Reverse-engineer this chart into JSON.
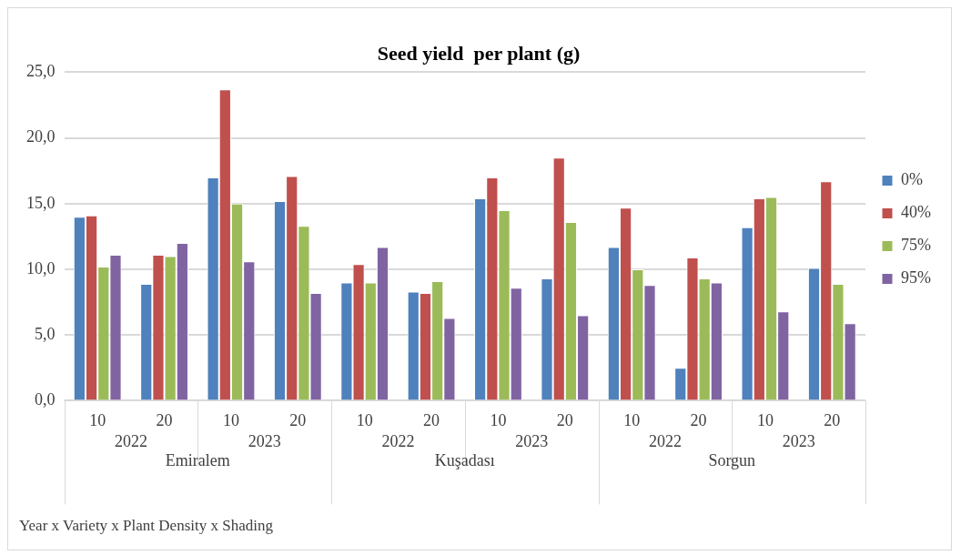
{
  "chart_data": {
    "type": "bar",
    "title": "Seed yield  per plant (g)",
    "categories": [
      "10",
      "20",
      "10",
      "20",
      "10",
      "20",
      "10",
      "20",
      "10",
      "20",
      "10",
      "20"
    ],
    "series": [
      {
        "name": "0%",
        "color": "#4f81bd",
        "values": [
          14.0,
          8.9,
          17.0,
          15.2,
          9.0,
          8.3,
          15.4,
          9.3,
          11.7,
          2.5,
          13.2,
          10.1
        ]
      },
      {
        "name": "40%",
        "color": "#c0504d",
        "values": [
          14.1,
          11.1,
          23.7,
          17.1,
          10.4,
          8.2,
          17.0,
          18.5,
          14.7,
          10.9,
          15.4,
          16.7
        ]
      },
      {
        "name": "75%",
        "color": "#9bbb59",
        "values": [
          10.2,
          11.0,
          15.0,
          13.3,
          9.0,
          9.1,
          14.5,
          13.6,
          10.0,
          9.3,
          15.5,
          8.9
        ]
      },
      {
        "name": "95%",
        "color": "#8064a2",
        "values": [
          11.1,
          12.0,
          10.6,
          8.2,
          11.7,
          6.3,
          8.6,
          6.5,
          8.8,
          9.0,
          6.8,
          5.9
        ]
      }
    ],
    "ylim": [
      0,
      25
    ],
    "yticks": [
      {
        "value": 0,
        "label": "0,0"
      },
      {
        "value": 5,
        "label": "5,0"
      },
      {
        "value": 10,
        "label": "10,0"
      },
      {
        "value": 15,
        "label": "15,0"
      },
      {
        "value": 20,
        "label": "20,0"
      },
      {
        "value": 25,
        "label": "25,0"
      }
    ],
    "grid": "y",
    "legend": "right",
    "annotations": [
      "2022",
      "2023",
      "2022",
      "2023",
      "2022",
      "2023",
      "Emiralem",
      "Kuşadası",
      "Sorgun",
      "Year x Variety x Plant Density x Shading"
    ]
  }
}
